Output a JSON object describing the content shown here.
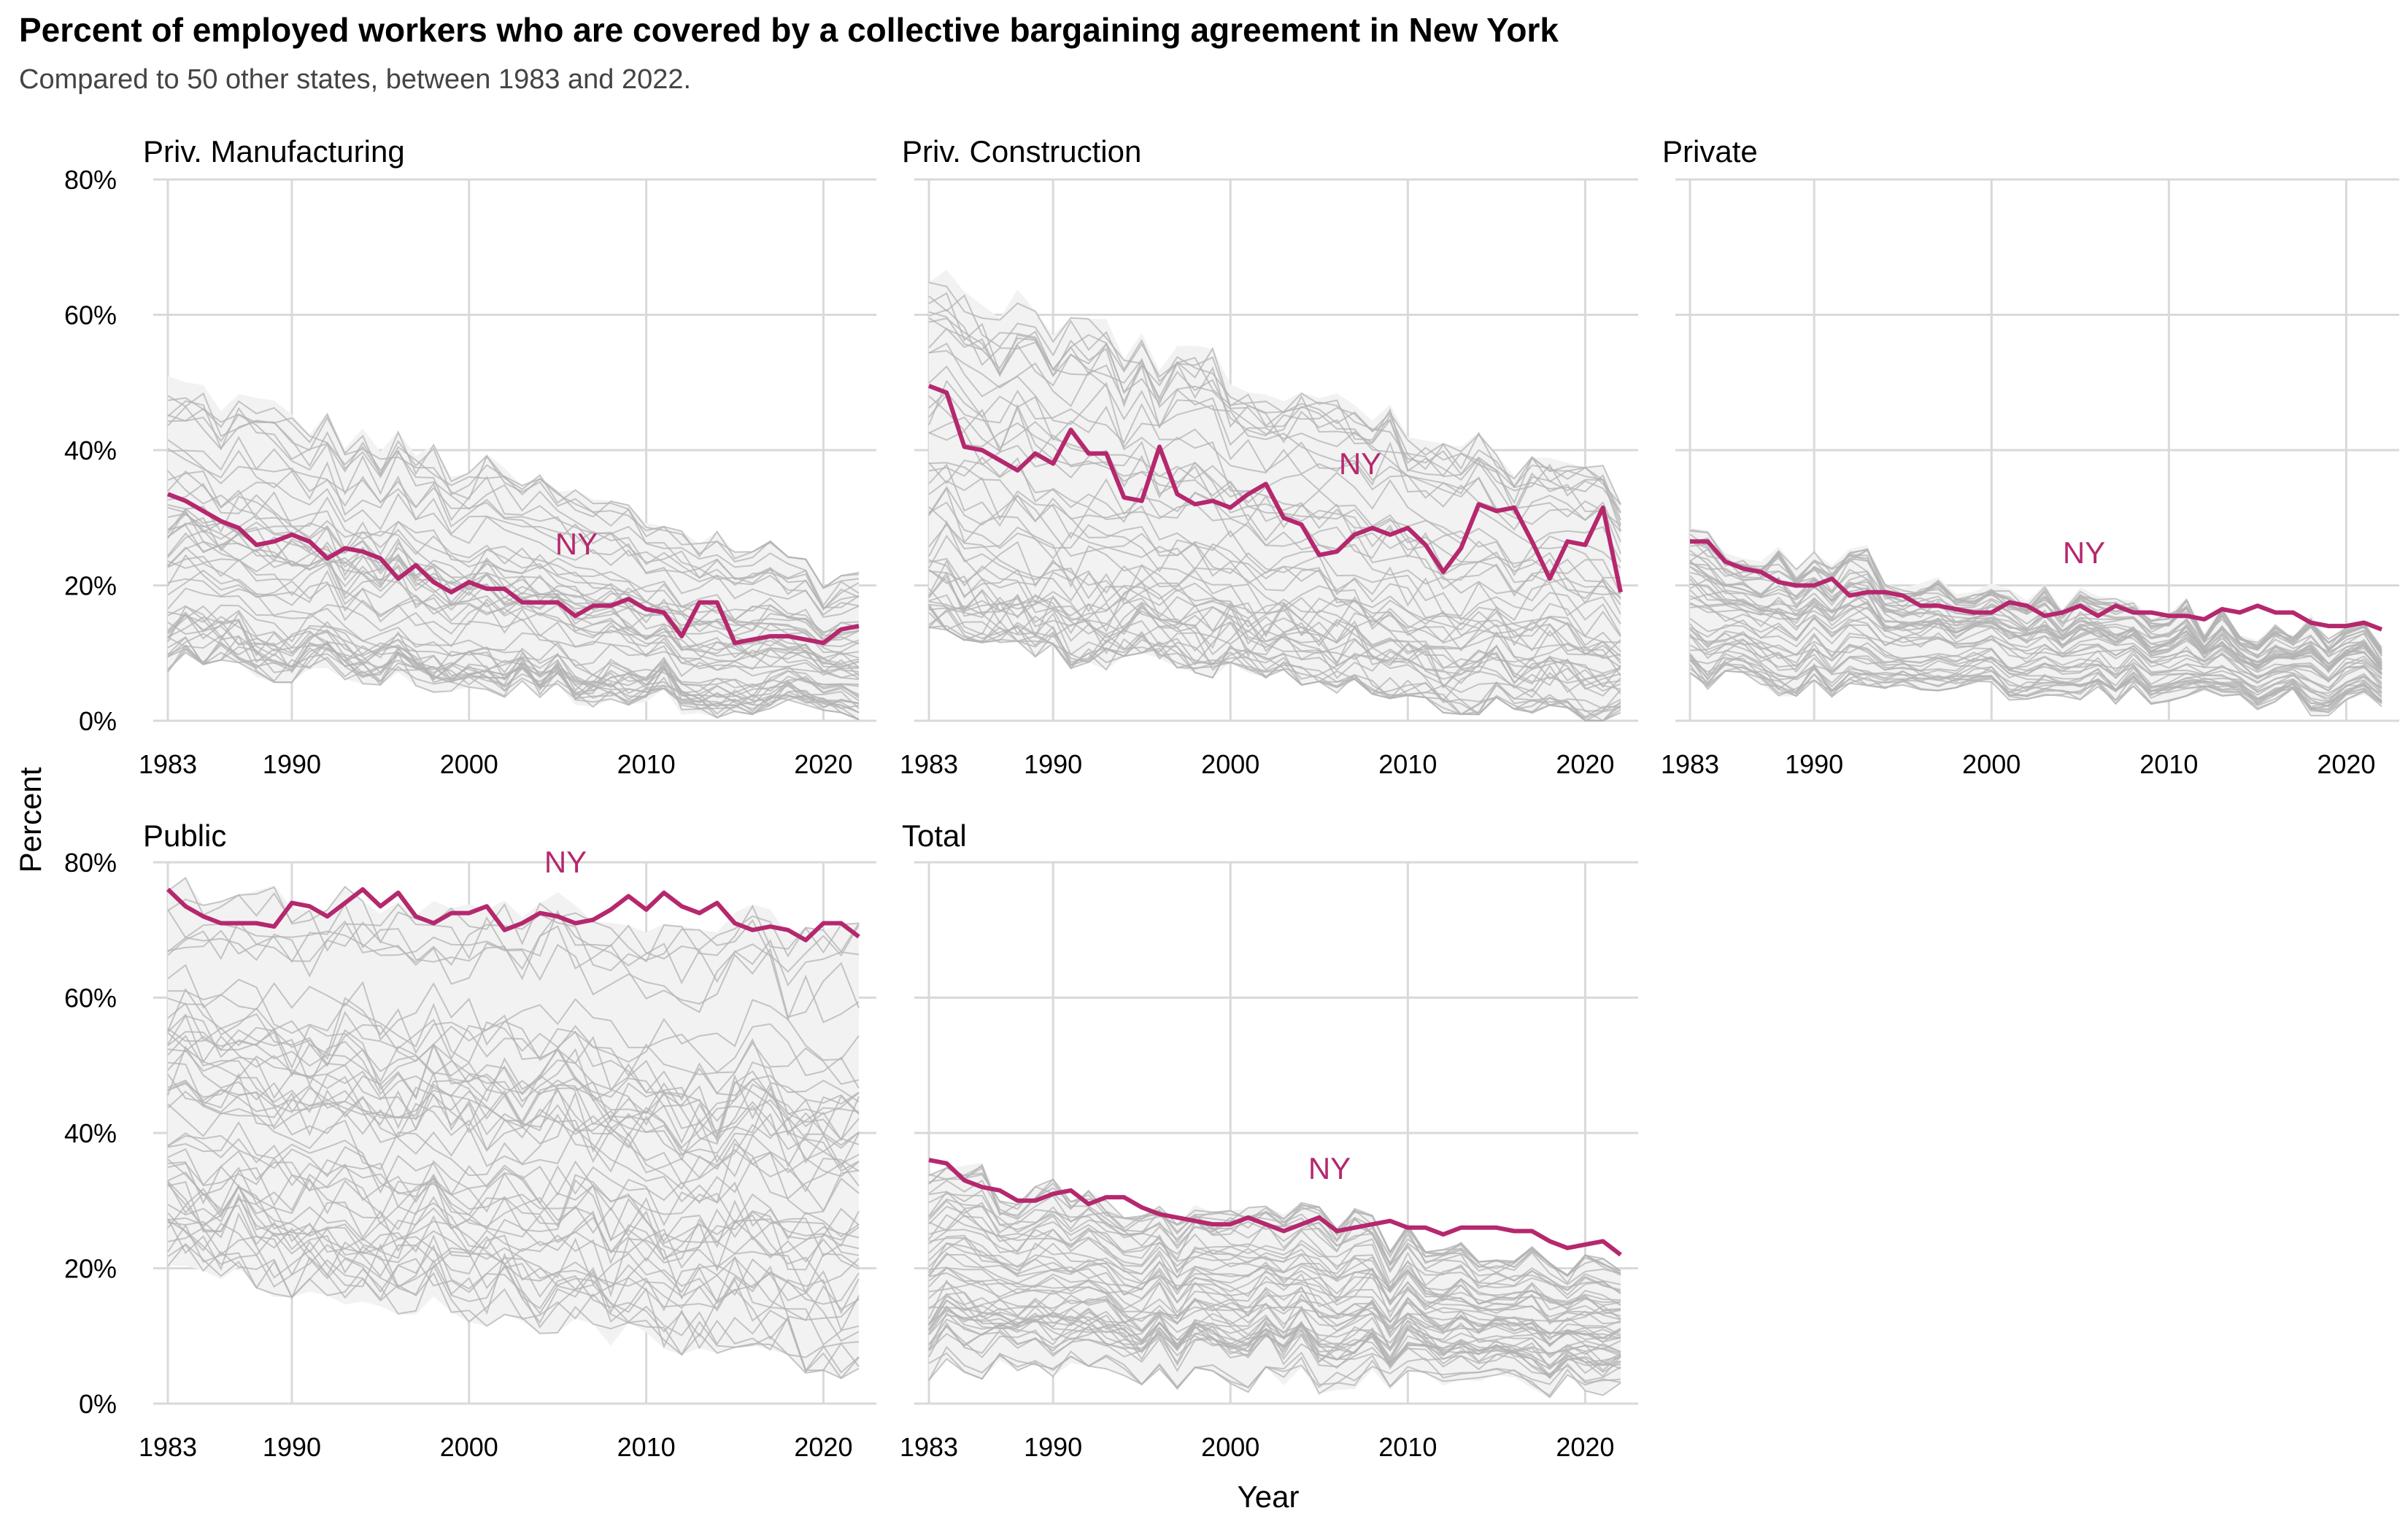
{
  "chart_data": {
    "type": "line",
    "title": "Percent of employed workers who are covered by a collective bargaining agreement in New York",
    "subtitle": "Compared to 50 other states, between 1983 and 2022.",
    "xlabel": "Year",
    "ylabel": "Percent",
    "xlim": [
      1983,
      2022
    ],
    "ylim": [
      0,
      80
    ],
    "x_ticks": [
      "1983",
      "1990",
      "2000",
      "2010",
      "2020"
    ],
    "y_ticks": [
      "0%",
      "20%",
      "40%",
      "60%",
      "80%"
    ],
    "grid": true,
    "highlight_label": "NY",
    "colors": {
      "highlight": "#b5286e",
      "others": "#b3b3b3",
      "band": "#f2f2f2",
      "grid": "#d9d9d9"
    },
    "years": [
      1983,
      1984,
      1985,
      1986,
      1987,
      1988,
      1989,
      1990,
      1991,
      1992,
      1993,
      1994,
      1995,
      1996,
      1997,
      1998,
      1999,
      2000,
      2001,
      2002,
      2003,
      2004,
      2005,
      2006,
      2007,
      2008,
      2009,
      2010,
      2011,
      2012,
      2013,
      2014,
      2015,
      2016,
      2017,
      2018,
      2019,
      2020,
      2021,
      2022
    ],
    "facets": [
      {
        "name": "Priv. Manufacturing",
        "ny_values": [
          33.5,
          32.5,
          31,
          29.5,
          28.5,
          26,
          26.5,
          27.5,
          26.5,
          24,
          25.5,
          25,
          24,
          21,
          23,
          20.5,
          19,
          20.5,
          19.5,
          19.5,
          17.5,
          17.5,
          17.5,
          15.5,
          17,
          17,
          18,
          16.5,
          16,
          12.5,
          17.5,
          17.5,
          11.5,
          12,
          12.5,
          12.5,
          12,
          11.5,
          13.5,
          14
        ],
        "others_band": {
          "max_start": 50,
          "max_end": 21,
          "min_start": 8,
          "min_end": 1
        }
      },
      {
        "name": "Priv. Construction",
        "ny_values": [
          49.5,
          48.5,
          40.5,
          40,
          38.5,
          37,
          39.5,
          38,
          43,
          39.5,
          39.5,
          33,
          32.5,
          40.5,
          33.5,
          32,
          32.5,
          31.5,
          33.5,
          35,
          30,
          29,
          24.5,
          25,
          27.5,
          28.5,
          27.5,
          28.5,
          26,
          22,
          25.5,
          32,
          31,
          31.5,
          26.5,
          21,
          26.5,
          26,
          31.5,
          19
        ],
        "others_band": {
          "max_start": 65,
          "max_end": 34,
          "min_start": 12,
          "min_end": 0
        }
      },
      {
        "name": "Private",
        "ny_values": [
          26.5,
          26.5,
          23.5,
          22.5,
          22,
          20.5,
          20,
          20,
          21,
          18.5,
          19,
          19,
          18.5,
          17,
          17,
          16.5,
          16,
          16,
          17.5,
          17,
          15.5,
          16,
          17,
          15.5,
          17,
          16,
          16,
          15.5,
          15.5,
          15,
          16.5,
          16,
          17,
          16,
          16,
          14.5,
          14,
          14,
          14.5,
          13.5
        ],
        "others_band": {
          "max_start": 27,
          "max_end": 12,
          "min_start": 6,
          "min_end": 2
        }
      },
      {
        "name": "Public",
        "ny_values": [
          76,
          73.5,
          72,
          71,
          71,
          71,
          70.5,
          74,
          73.5,
          72,
          74,
          76,
          73.5,
          75.5,
          72,
          71,
          72.5,
          72.5,
          73.5,
          70,
          71,
          72.5,
          72,
          71,
          71.5,
          73,
          75,
          73,
          75.5,
          73.5,
          72.5,
          74,
          71,
          70,
          70.5,
          70,
          68.5,
          71,
          71,
          69
        ],
        "others_band": {
          "max_start": 77,
          "max_end": 70,
          "min_start": 20,
          "min_end": 5
        }
      },
      {
        "name": "Total",
        "ny_values": [
          36,
          35.5,
          33,
          32,
          31.5,
          30,
          30,
          31,
          31.5,
          29.5,
          30.5,
          30.5,
          29,
          28,
          27.5,
          27,
          26.5,
          26.5,
          27.5,
          26.5,
          25.5,
          26.5,
          27.5,
          25.5,
          26,
          26.5,
          27,
          26,
          26,
          25,
          26,
          26,
          26,
          25.5,
          25.5,
          24,
          23,
          23.5,
          24,
          22
        ],
        "others_band": {
          "max_start": 34,
          "max_end": 21,
          "min_start": 5,
          "min_end": 2
        }
      }
    ]
  }
}
